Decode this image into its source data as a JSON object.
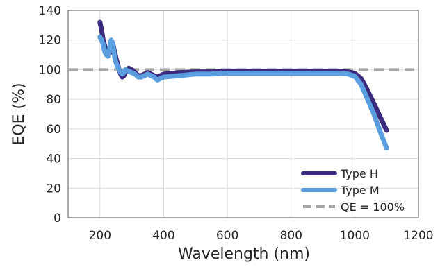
{
  "chart_data": {
    "type": "line",
    "title": "",
    "xlabel": "Wavelength (nm)",
    "ylabel": "EQE (%)",
    "xlim": [
      100,
      1200
    ],
    "ylim": [
      0,
      140
    ],
    "x_ticks": [
      200,
      400,
      600,
      800,
      1000,
      1200
    ],
    "y_ticks": [
      0,
      20,
      40,
      60,
      80,
      100,
      120,
      140
    ],
    "x_tick_labels": [
      "200",
      "400",
      "600",
      "800",
      "1000",
      "1200"
    ],
    "y_tick_labels": [
      "0",
      "20",
      "40",
      "60",
      "80",
      "100",
      "120",
      "140"
    ],
    "grid": true,
    "legend_position": "bottom-right",
    "series": [
      {
        "name": "Type H",
        "color": "#3b2a7d",
        "style": "solid",
        "x": [
          200,
          205,
          210,
          215,
          220,
          225,
          230,
          235,
          240,
          245,
          250,
          255,
          260,
          265,
          270,
          275,
          280,
          290,
          300,
          310,
          320,
          330,
          340,
          350,
          360,
          370,
          380,
          400,
          450,
          500,
          550,
          600,
          650,
          700,
          750,
          800,
          850,
          900,
          950,
          980,
          1000,
          1020,
          1040,
          1060,
          1080,
          1100
        ],
        "values": [
          132,
          127,
          120,
          116,
          113,
          110,
          111,
          114,
          118,
          113,
          108,
          104,
          100,
          97,
          95,
          96,
          98,
          101,
          100,
          98,
          96,
          96,
          97,
          98,
          97,
          96,
          95,
          97,
          98,
          98.5,
          98.5,
          99,
          99,
          99,
          99,
          99,
          99,
          99,
          99,
          98.5,
          97.5,
          94,
          86,
          77,
          68,
          59
        ]
      },
      {
        "name": "Type M",
        "color": "#5b9ee0",
        "style": "solid",
        "x": [
          200,
          205,
          210,
          215,
          220,
          225,
          230,
          235,
          240,
          245,
          250,
          255,
          260,
          265,
          270,
          275,
          280,
          290,
          300,
          310,
          320,
          330,
          340,
          350,
          360,
          370,
          380,
          400,
          450,
          500,
          550,
          600,
          650,
          700,
          750,
          800,
          850,
          900,
          950,
          980,
          1000,
          1020,
          1040,
          1060,
          1080,
          1100
        ],
        "values": [
          122,
          120,
          117,
          112,
          110,
          109,
          114,
          120,
          118,
          110,
          105,
          102,
          100,
          98,
          97,
          98,
          100,
          99,
          98,
          97,
          95,
          95,
          96,
          97,
          96,
          95,
          93,
          95,
          96,
          97,
          97,
          97.5,
          97.5,
          97.5,
          97.5,
          97.5,
          97.5,
          97.5,
          97.5,
          97,
          95.5,
          90,
          80,
          70,
          58,
          47
        ]
      },
      {
        "name": "QE = 100%",
        "color": "#a6a6a6",
        "style": "dashed",
        "x": [
          100,
          1200
        ],
        "values": [
          100,
          100
        ]
      }
    ]
  }
}
